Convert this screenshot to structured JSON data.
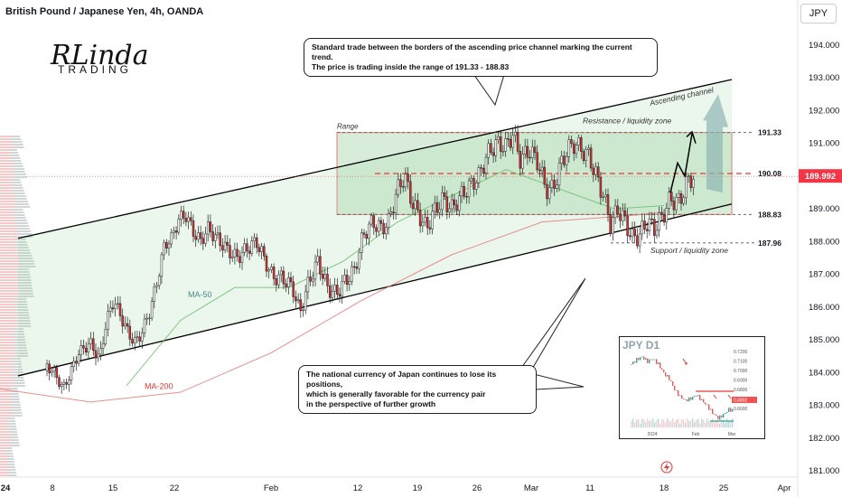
{
  "header": {
    "symbol_title": "British Pound / Japanese Yen, 4h, OANDA",
    "currency_button": "JPY"
  },
  "logo": {
    "line1": "RLinda",
    "line2": "TRADING"
  },
  "annotations": {
    "callout_top": [
      "Standard trade between the borders of the ascending price channel marking the current trend.",
      "The price is trading inside the range of 191.33 - 188.83"
    ],
    "callout_bottom": [
      "The national currency of Japan continues to lose its positions,",
      "which is generally favorable for the currency pair",
      "in the perspective of further growth"
    ],
    "range_label": "Range",
    "resistance_label": "Resistance / liquidity zone",
    "support_label": "Support / liquidity zone",
    "channel_label": "Ascending channel",
    "ma50_label": "MA-50",
    "ma200_label": "MA-200"
  },
  "chart_data": {
    "type": "candlestick",
    "title": "British Pound / Japanese Yen, 4h, OANDA",
    "ylim": [
      180.8,
      194.6
    ],
    "y_ticks": [
      181.0,
      182.0,
      183.0,
      184.0,
      185.0,
      186.0,
      187.0,
      188.0,
      189.0,
      190.0,
      191.0,
      192.0,
      193.0,
      194.0
    ],
    "x_ticks": [
      "24",
      "8",
      "15",
      "22",
      "Feb",
      "12",
      "19",
      "26",
      "Mar",
      "11",
      "18",
      "25",
      "Apr"
    ],
    "current_price": 189.992,
    "levels": [
      {
        "label": "191.33",
        "value": 191.33
      },
      {
        "label": "190.08",
        "value": 190.08
      },
      {
        "label": "188.83",
        "value": 188.83
      },
      {
        "label": "187.96",
        "value": 187.96
      }
    ],
    "price_path": [
      [
        0,
        181.8
      ],
      [
        8,
        183.0
      ],
      [
        15,
        183.7
      ],
      [
        22,
        184.2
      ],
      [
        30,
        184.0
      ],
      [
        40,
        183.5
      ],
      [
        48,
        184.0
      ],
      [
        57,
        184.6
      ],
      [
        70,
        184.9
      ],
      [
        80,
        184.4
      ],
      [
        88,
        185.6
      ],
      [
        96,
        186.2
      ],
      [
        104,
        185.7
      ],
      [
        112,
        185.2
      ],
      [
        120,
        184.9
      ],
      [
        128,
        185.3
      ],
      [
        136,
        185.9
      ],
      [
        144,
        186.8
      ],
      [
        152,
        187.9
      ],
      [
        160,
        188.1
      ],
      [
        168,
        188.7
      ],
      [
        176,
        188.8
      ],
      [
        184,
        188.3
      ],
      [
        192,
        188.0
      ],
      [
        200,
        188.4
      ],
      [
        210,
        188.1
      ],
      [
        220,
        187.8
      ],
      [
        232,
        187.5
      ],
      [
        244,
        187.8
      ],
      [
        254,
        188.0
      ],
      [
        262,
        187.5
      ],
      [
        272,
        186.9
      ],
      [
        282,
        186.9
      ],
      [
        294,
        186.6
      ],
      [
        302,
        185.8
      ],
      [
        312,
        186.8
      ],
      [
        322,
        187.4
      ],
      [
        332,
        186.6
      ],
      [
        342,
        186.4
      ],
      [
        352,
        186.8
      ],
      [
        362,
        187.1
      ],
      [
        372,
        188.2
      ],
      [
        382,
        188.6
      ],
      [
        392,
        188.4
      ],
      [
        400,
        188.6
      ],
      [
        410,
        189.6
      ],
      [
        418,
        190.0
      ],
      [
        426,
        189.2
      ],
      [
        434,
        188.8
      ],
      [
        442,
        188.4
      ],
      [
        450,
        188.9
      ],
      [
        460,
        189.3
      ],
      [
        470,
        189.0
      ],
      [
        480,
        189.4
      ],
      [
        490,
        189.7
      ],
      [
        500,
        190.0
      ],
      [
        510,
        190.7
      ],
      [
        520,
        191.0
      ],
      [
        530,
        190.9
      ],
      [
        538,
        191.3
      ],
      [
        546,
        190.5
      ],
      [
        556,
        190.8
      ],
      [
        566,
        190.4
      ],
      [
        574,
        189.6
      ],
      [
        582,
        189.6
      ],
      [
        590,
        190.3
      ],
      [
        598,
        190.8
      ],
      [
        606,
        191.0
      ],
      [
        614,
        190.8
      ],
      [
        622,
        190.6
      ],
      [
        630,
        190.0
      ],
      [
        638,
        189.4
      ],
      [
        646,
        188.5
      ],
      [
        654,
        189.0
      ],
      [
        662,
        188.6
      ],
      [
        670,
        188.1
      ],
      [
        678,
        188.2
      ],
      [
        686,
        188.6
      ],
      [
        694,
        188.4
      ],
      [
        702,
        188.7
      ],
      [
        712,
        189.3
      ],
      [
        722,
        189.2
      ],
      [
        730,
        189.8
      ],
      [
        738,
        190.0
      ]
    ],
    "ma50": [
      [
        140,
        183.6
      ],
      [
        200,
        185.6
      ],
      [
        260,
        186.6
      ],
      [
        320,
        186.6
      ],
      [
        380,
        187.4
      ],
      [
        440,
        188.6
      ],
      [
        500,
        189.4
      ],
      [
        560,
        190.2
      ],
      [
        620,
        189.6
      ],
      [
        680,
        189.0
      ],
      [
        735,
        189.1
      ]
    ],
    "ma200": [
      [
        0,
        183.5
      ],
      [
        100,
        183.1
      ],
      [
        200,
        183.4
      ],
      [
        300,
        184.6
      ],
      [
        400,
        186.2
      ],
      [
        500,
        187.6
      ],
      [
        600,
        188.6
      ],
      [
        700,
        188.8
      ],
      [
        735,
        188.9
      ]
    ],
    "channel_upper": [
      [
        20,
        188.1
      ],
      [
        810,
        192.95
      ]
    ],
    "channel_lower": [
      [
        20,
        183.9
      ],
      [
        810,
        189.15
      ]
    ],
    "inset": {
      "title": "JPY D1",
      "y_ticks": [
        "0.7200",
        "0.7100",
        "0.7000",
        "0.6900",
        "0.6800",
        "0.6700",
        "0.6600"
      ],
      "x_ticks": [
        "2024",
        "Feb",
        "Mar"
      ],
      "current_value": "0.6802"
    }
  }
}
